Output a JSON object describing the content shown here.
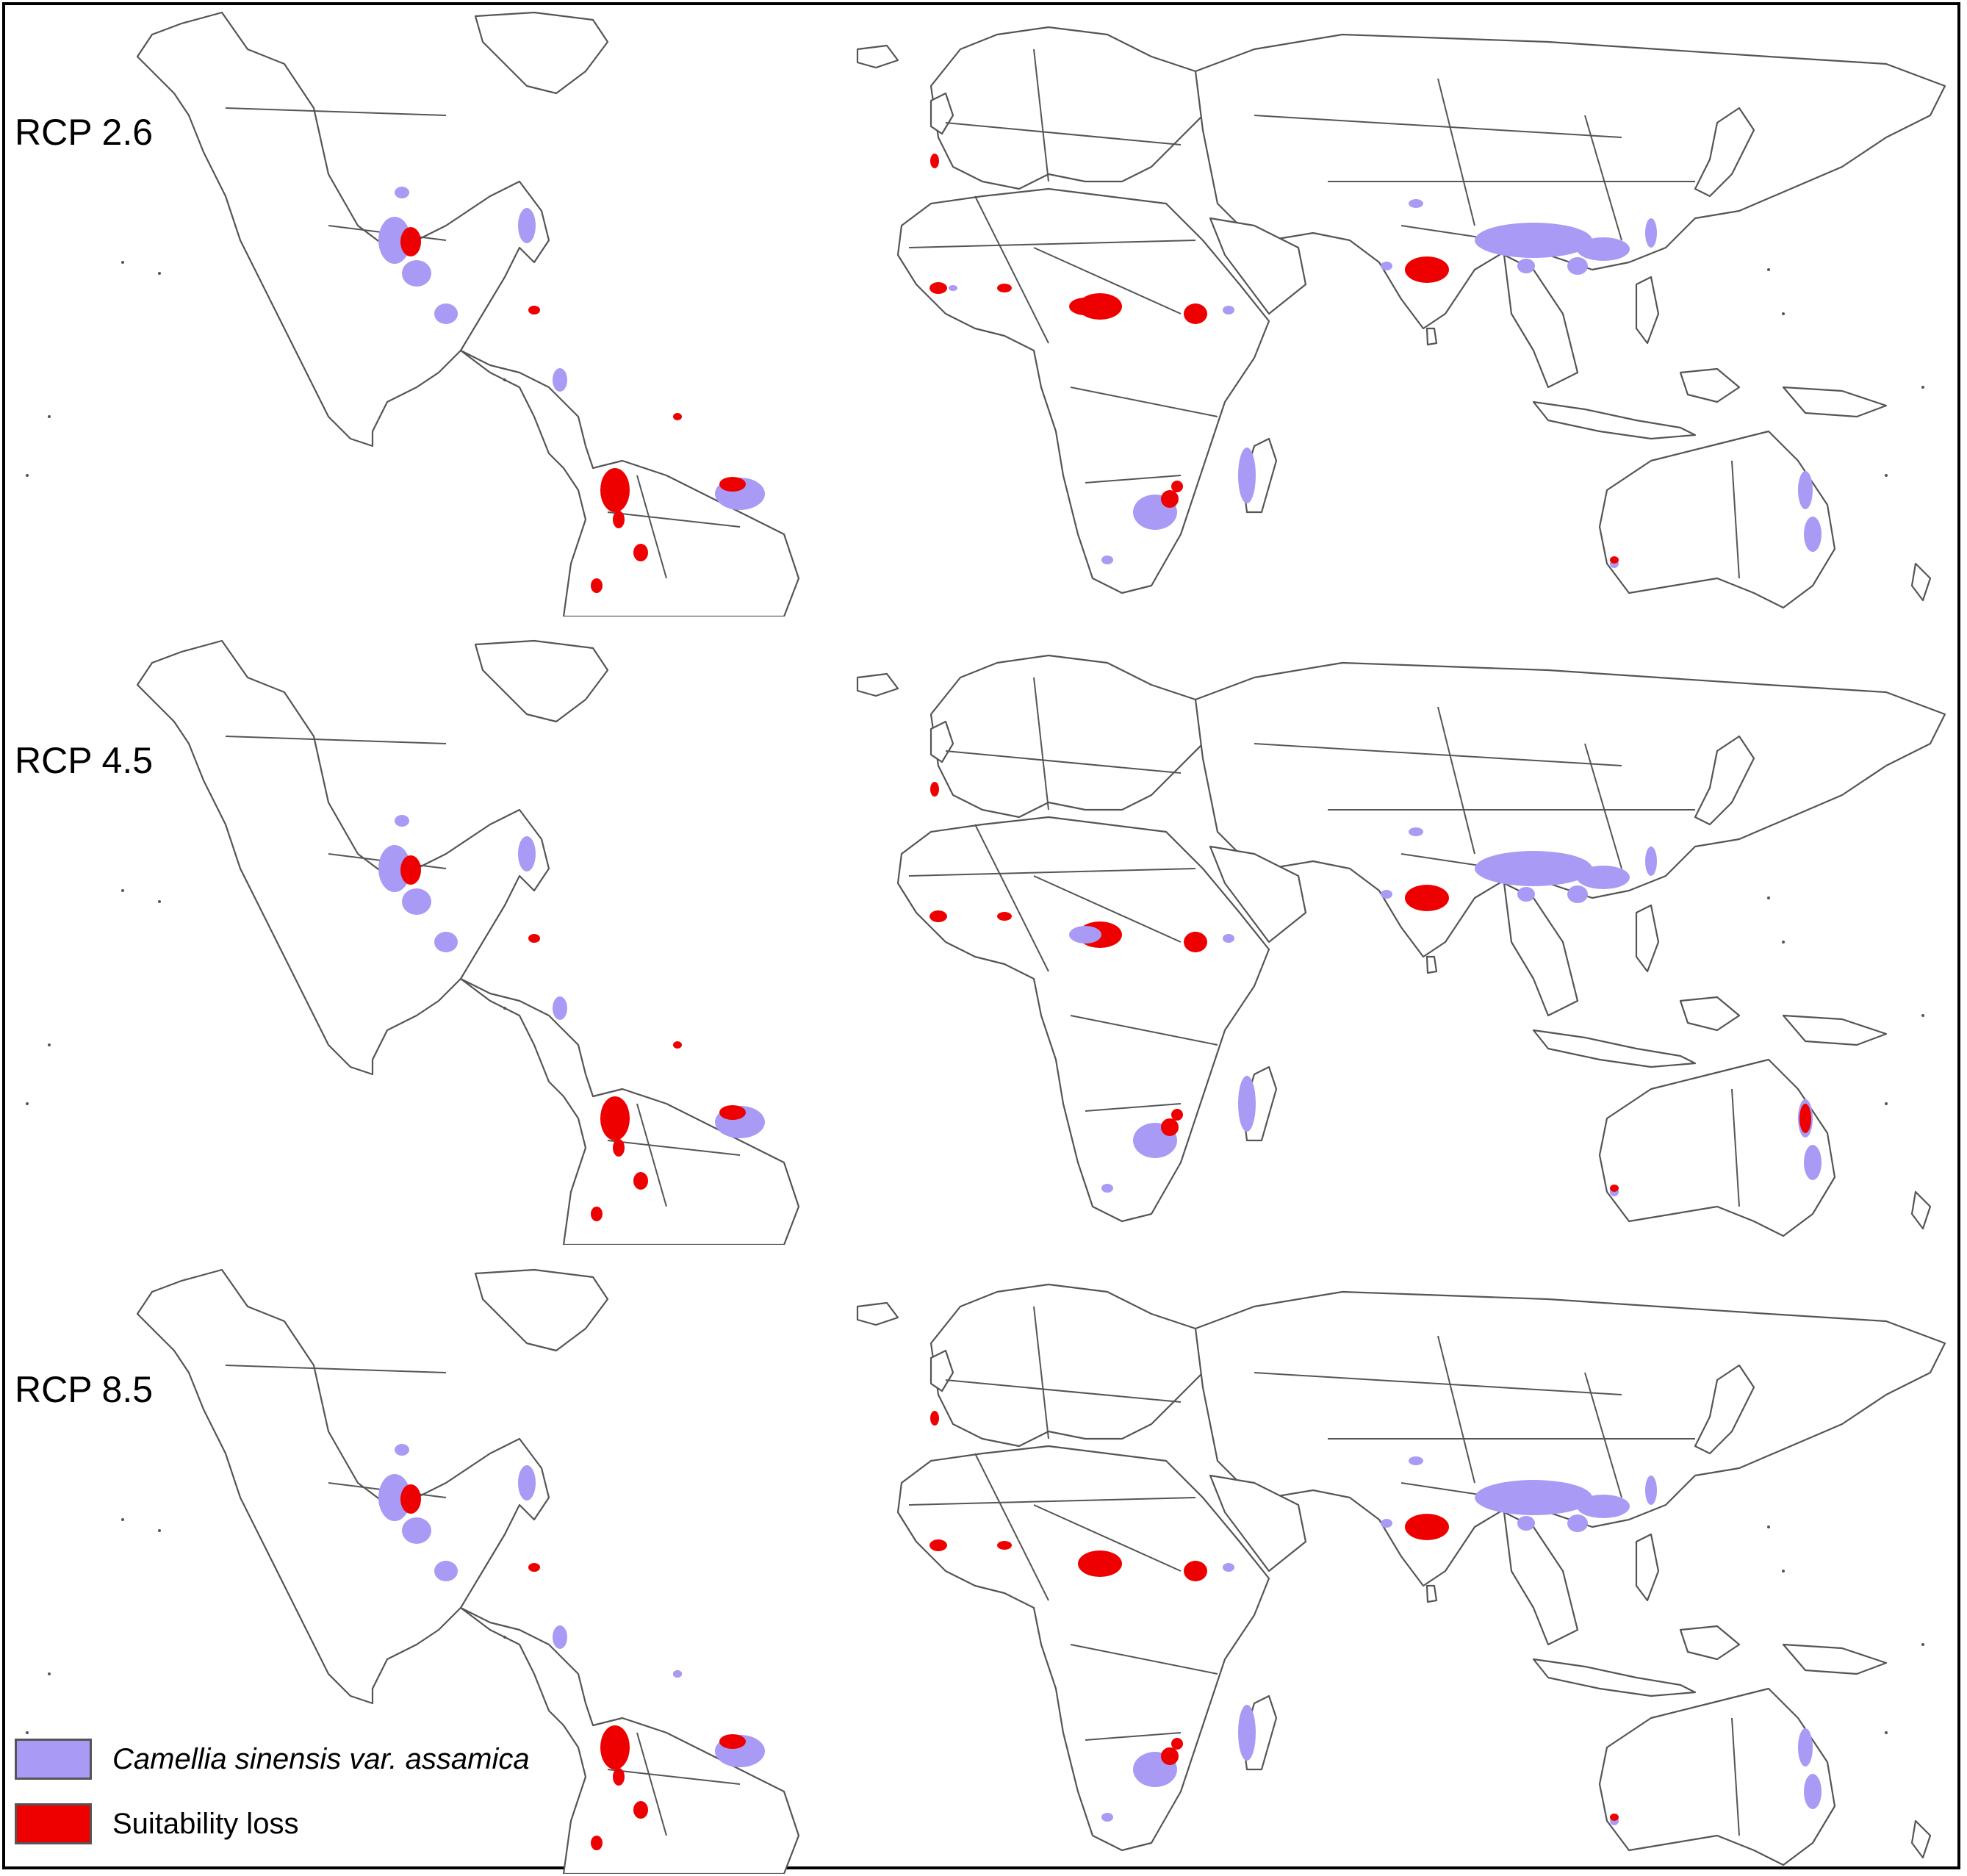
{
  "panels": [
    {
      "label": "RCP 2.6"
    },
    {
      "label": "RCP 4.5"
    },
    {
      "label": "RCP 8.5"
    }
  ],
  "legend": [
    {
      "label": "Camellia sinensis var. assamica",
      "color": "#a99af5"
    },
    {
      "label": "Suitability loss",
      "color": "#ee0000"
    }
  ],
  "colors": {
    "suitable": "#a99af5",
    "loss": "#ee0000",
    "outline": "#555555"
  }
}
